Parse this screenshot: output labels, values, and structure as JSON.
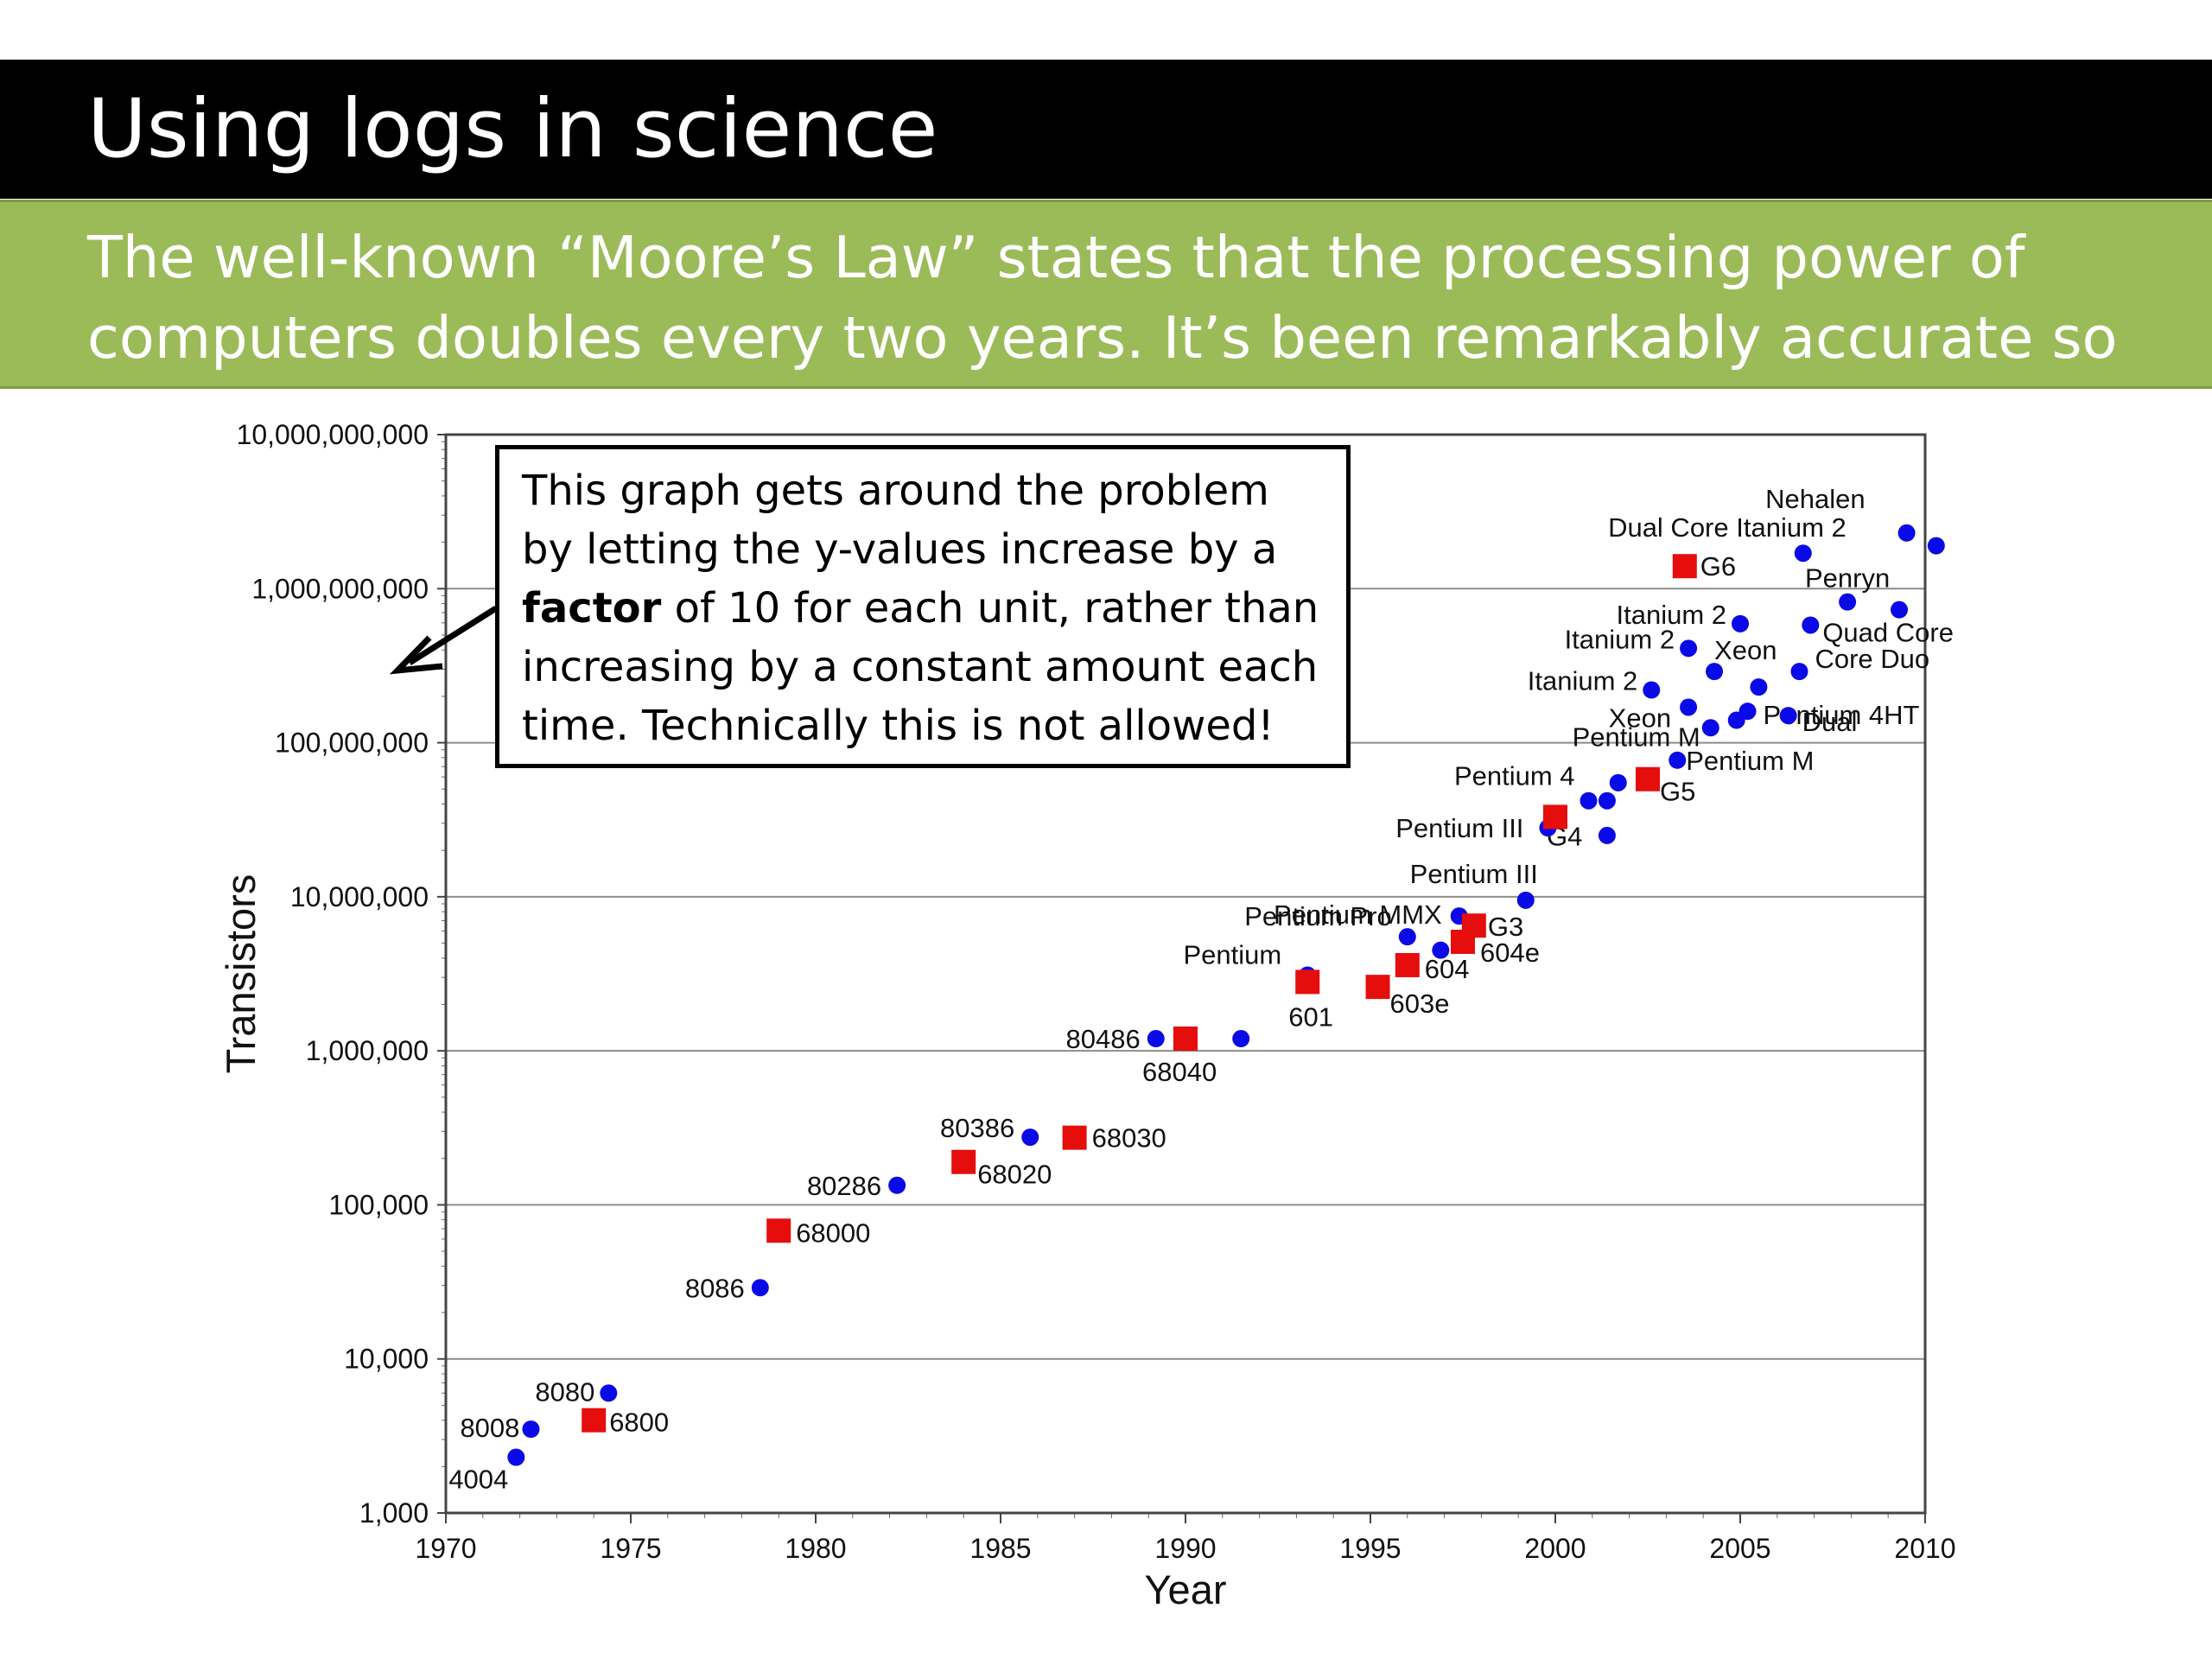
{
  "slide": {
    "title": "Using logs in science",
    "subtitle": "The well-known “Moore’s Law” states that the processing power of computers doubles every two years. It’s been remarkably accurate so far!"
  },
  "callout": {
    "text_before": "This graph gets around the problem by letting the y-values increase by a ",
    "bold_word": "factor",
    "text_after": " of 10 for each unit, rather than increasing by a constant amount each time. Technically this is not allowed!"
  },
  "colors": {
    "title_bar": "#000000",
    "subtitle_bar": "#9bbb59",
    "series_circle": "#0a0ae6",
    "series_square": "#e60d0d"
  },
  "chart_data": {
    "type": "scatter",
    "xlabel": "Year",
    "ylabel": "Transistors",
    "xlim": [
      1970,
      2010
    ],
    "ylim": [
      1000,
      10000000000
    ],
    "yscale": "log",
    "grid": "horizontal",
    "x_ticks": [
      "1970",
      "1975",
      "1980",
      "1985",
      "1990",
      "1995",
      "2000",
      "2005",
      "2010"
    ],
    "y_ticks": [
      "1,000",
      "10,000",
      "100,000",
      "1,000,000",
      "10,000,000",
      "100,000,000",
      "1,000,000,000",
      "10,000,000,000"
    ],
    "series": [
      {
        "marker": "circle",
        "points": [
          {
            "x": 1971.9,
            "y": 2300,
            "label": "4004"
          },
          {
            "x": 1972.3,
            "y": 3500,
            "label": "8008"
          },
          {
            "x": 1974.4,
            "y": 6000,
            "label": "8080"
          },
          {
            "x": 1978.5,
            "y": 29000,
            "label": "8086"
          },
          {
            "x": 1982.2,
            "y": 134000,
            "label": "80286"
          },
          {
            "x": 1985.8,
            "y": 275000,
            "label": "80386"
          },
          {
            "x": 1989.2,
            "y": 1200000,
            "label": "80486"
          },
          {
            "x": 1991.5,
            "y": 1200000,
            "label": ""
          },
          {
            "x": 1993.3,
            "y": 3100000,
            "label": "Pentium"
          },
          {
            "x": 1996.0,
            "y": 5500000,
            "label": "Pentium Pro"
          },
          {
            "x": 1996.9,
            "y": 4500000,
            "label": ""
          },
          {
            "x": 1997.4,
            "y": 7500000,
            "label": "Pentium MMX"
          },
          {
            "x": 1999.2,
            "y": 9500000,
            "label": "Pentium III"
          },
          {
            "x": 1999.8,
            "y": 28000000,
            "label": "Pentium III"
          },
          {
            "x": 2000.9,
            "y": 42000000,
            "label": "Pentium 4"
          },
          {
            "x": 2001.4,
            "y": 42000000,
            "label": ""
          },
          {
            "x": 2001.4,
            "y": 25000000,
            "label": ""
          },
          {
            "x": 2001.7,
            "y": 55000000,
            "label": ""
          },
          {
            "x": 2002.6,
            "y": 220000000,
            "label": "Itanium 2"
          },
          {
            "x": 2003.3,
            "y": 77000000,
            "label": "Pentium M"
          },
          {
            "x": 2003.6,
            "y": 410000000,
            "label": "Itanium 2"
          },
          {
            "x": 2003.6,
            "y": 170000000,
            "label": "Xeon"
          },
          {
            "x": 2004.2,
            "y": 125000000,
            "label": "Pentium M"
          },
          {
            "x": 2004.3,
            "y": 290000000,
            "label": "Xeon"
          },
          {
            "x": 2004.9,
            "y": 140000000,
            "label": ""
          },
          {
            "x": 2005.0,
            "y": 592000000,
            "label": "Itanium 2"
          },
          {
            "x": 2005.2,
            "y": 160000000,
            "label": "Pentium 4HT"
          },
          {
            "x": 2005.5,
            "y": 230000000,
            "label": ""
          },
          {
            "x": 2006.3,
            "y": 150000000,
            "label": "Dual"
          },
          {
            "x": 2006.6,
            "y": 290000000,
            "label": "Core Duo"
          },
          {
            "x": 2006.7,
            "y": 1700000000,
            "label": "Dual Core Itanium 2"
          },
          {
            "x": 2006.9,
            "y": 580000000,
            "label": "Quad Core"
          },
          {
            "x": 2007.9,
            "y": 820000000,
            "label": "Penryn"
          },
          {
            "x": 2009.3,
            "y": 730000000,
            "label": ""
          },
          {
            "x": 2009.5,
            "y": 2300000000,
            "label": "Nehalen"
          },
          {
            "x": 2010.3,
            "y": 1900000000,
            "label": ""
          }
        ]
      },
      {
        "marker": "square",
        "points": [
          {
            "x": 1974.0,
            "y": 4000,
            "label": "6800"
          },
          {
            "x": 1979.0,
            "y": 68000,
            "label": "68000"
          },
          {
            "x": 1984.0,
            "y": 190000,
            "label": "68020"
          },
          {
            "x": 1987.0,
            "y": 273000,
            "label": "68030"
          },
          {
            "x": 1990.0,
            "y": 1200000,
            "label": "68040"
          },
          {
            "x": 1993.3,
            "y": 2800000,
            "label": "601"
          },
          {
            "x": 1995.2,
            "y": 2600000,
            "label": "603e"
          },
          {
            "x": 1996.0,
            "y": 3600000,
            "label": "604"
          },
          {
            "x": 1997.5,
            "y": 5100000,
            "label": "604e"
          },
          {
            "x": 1997.8,
            "y": 6500000,
            "label": "G3"
          },
          {
            "x": 2000.0,
            "y": 33000000,
            "label": "G4"
          },
          {
            "x": 2002.5,
            "y": 58000000,
            "label": "G5"
          },
          {
            "x": 2003.5,
            "y": 1400000000,
            "label": "G6"
          }
        ]
      }
    ]
  }
}
